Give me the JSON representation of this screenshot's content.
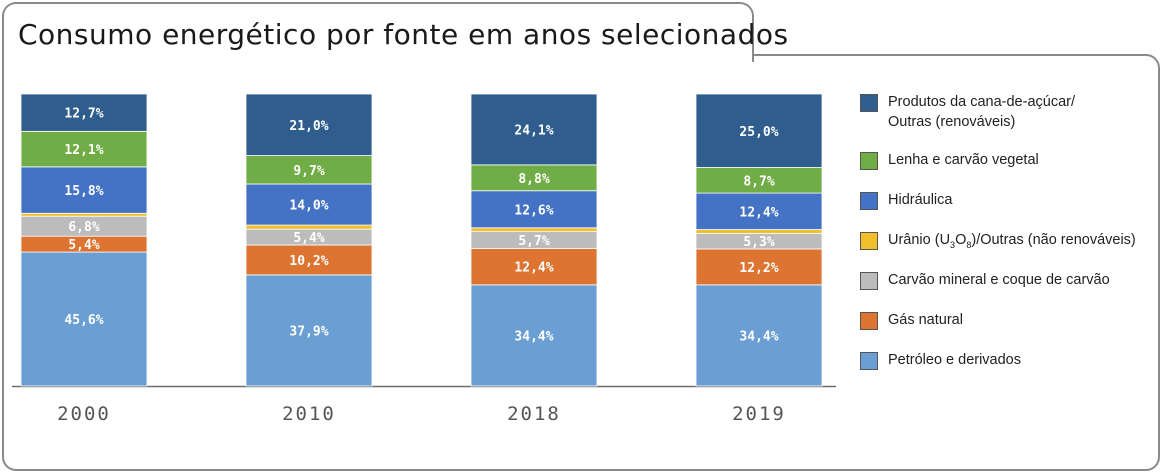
{
  "title": "Consumo energético por fonte em anos selecionados",
  "chart_data": {
    "type": "bar",
    "stacked": true,
    "unit": "%",
    "categories": [
      "2000",
      "2010",
      "2018",
      "2019"
    ],
    "ylim": [
      0,
      100
    ],
    "series": [
      {
        "name": "Petróleo e derivados",
        "color": "#6b9fd4",
        "values": [
          45.6,
          37.9,
          34.4,
          34.4
        ],
        "labels": [
          "45,6%",
          "37,9%",
          "34,4%",
          "34,4%"
        ]
      },
      {
        "name": "Gás natural",
        "color": "#dd7431",
        "values": [
          5.4,
          10.2,
          12.4,
          12.2
        ],
        "labels": [
          "5,4%",
          "10,2%",
          "12,4%",
          "12,2%"
        ]
      },
      {
        "name": "Carvão mineral e coque de carvão",
        "color": "#bcbcbc",
        "values": [
          6.8,
          5.4,
          5.7,
          5.3
        ],
        "labels": [
          "6,8%",
          "5,4%",
          "5,7%",
          "5,3%"
        ]
      },
      {
        "name": "Urânio (U3O8)/Outras (não renováveis)",
        "color": "#f1be2c",
        "values": [
          1.0,
          1.4,
          1.3,
          1.3
        ],
        "labels": [
          "",
          "",
          "",
          ""
        ]
      },
      {
        "name": "Hidráulica",
        "color": "#4472c4",
        "values": [
          15.8,
          14.0,
          12.6,
          12.4
        ],
        "labels": [
          "15,8%",
          "14,0%",
          "12,6%",
          "12,4%"
        ]
      },
      {
        "name": "Lenha e carvão vegetal",
        "color": "#70ad47",
        "values": [
          12.1,
          9.7,
          8.8,
          8.7
        ],
        "labels": [
          "12,1%",
          "9,7%",
          "8,8%",
          "8,7%"
        ]
      },
      {
        "name": "Produtos da cana-de-açúcar/\nOutras (renováveis)",
        "color": "#2e5d8e",
        "values": [
          12.7,
          21.0,
          24.1,
          25.0
        ],
        "labels": [
          "12,7%",
          "21,0%",
          "24,1%",
          "25,0%"
        ]
      }
    ],
    "legend_order": [
      "Produtos da cana-de-açúcar/\nOutras (renováveis)",
      "Lenha e carvão vegetal",
      "Hidráulica",
      "Urânio (U3O8)/Outras (não renováveis)",
      "Carvão mineral e coque de carvão",
      "Gás natural",
      "Petróleo e derivados"
    ],
    "legend_placement": "right"
  }
}
